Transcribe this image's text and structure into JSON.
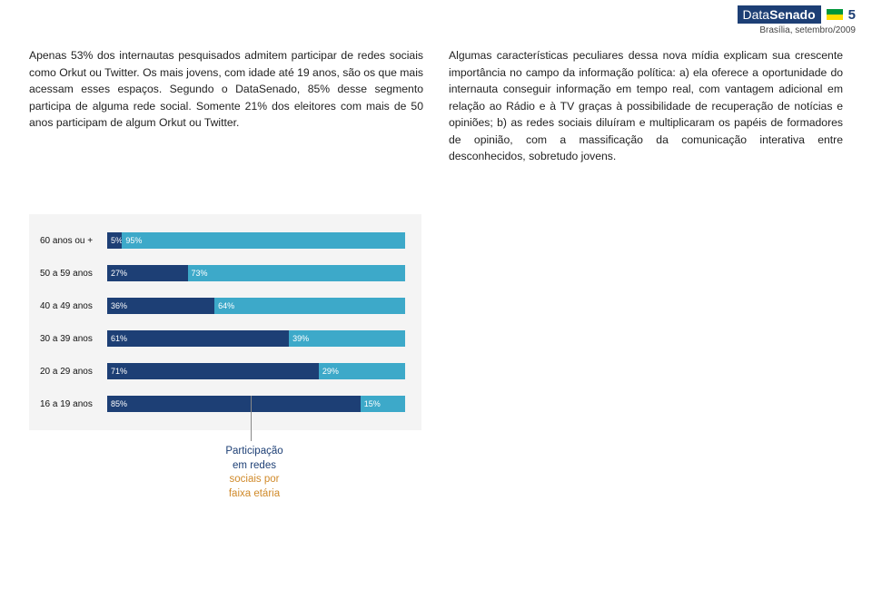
{
  "header": {
    "brand_prefix": "Data",
    "brand_bold": "Senado",
    "page_number": "5",
    "subline": "Brasília, setembro/2009"
  },
  "paragraphs": {
    "left": "Apenas 53% dos internautas pesquisados admitem participar de redes sociais como Orkut ou Twitter. Os mais jovens, com idade até 19 anos, são os que mais acessam esses espaços. Segundo o DataSenado, 85% desse segmento participa de alguma rede social. Somente 21% dos eleitores com mais de 50 anos participam de algum Orkut ou Twitter.",
    "right": "Algumas características peculiares dessa nova mídia explicam sua crescente importância no campo da informação política: a) ela oferece a oportunidade do internauta conseguir informação em tempo real, com vantagem adicional em relação ao Rádio e à TV graças à possibilidade de recuperação de notícias e opiniões; b) as redes sociais diluíram e multiplicaram os papéis de formadores de opinião, com a massificação da comunicação interativa entre desconhecidos, sobretudo jovens."
  },
  "chart": {
    "type": "stacked-bar-horizontal",
    "background_color": "#f4f4f4",
    "color_a": "#1d3f75",
    "color_b": "#3da9c9",
    "label_fontsize": 10,
    "value_fontsize": 9,
    "rows": [
      {
        "label": "60 anos ou +",
        "a": 5,
        "b": 95
      },
      {
        "label": "50 a 59 anos",
        "a": 27,
        "b": 73
      },
      {
        "label": "40 a 49 anos",
        "a": 36,
        "b": 64
      },
      {
        "label": "30 a 39 anos",
        "a": 61,
        "b": 39
      },
      {
        "label": "20 a 29 anos",
        "a": 71,
        "b": 29
      },
      {
        "label": "16 a 19 anos",
        "a": 85,
        "b": 15
      }
    ],
    "caption_line1": "Participação",
    "caption_line2": "em redes",
    "caption_line3": "sociais por",
    "caption_line4": "faixa etária"
  }
}
